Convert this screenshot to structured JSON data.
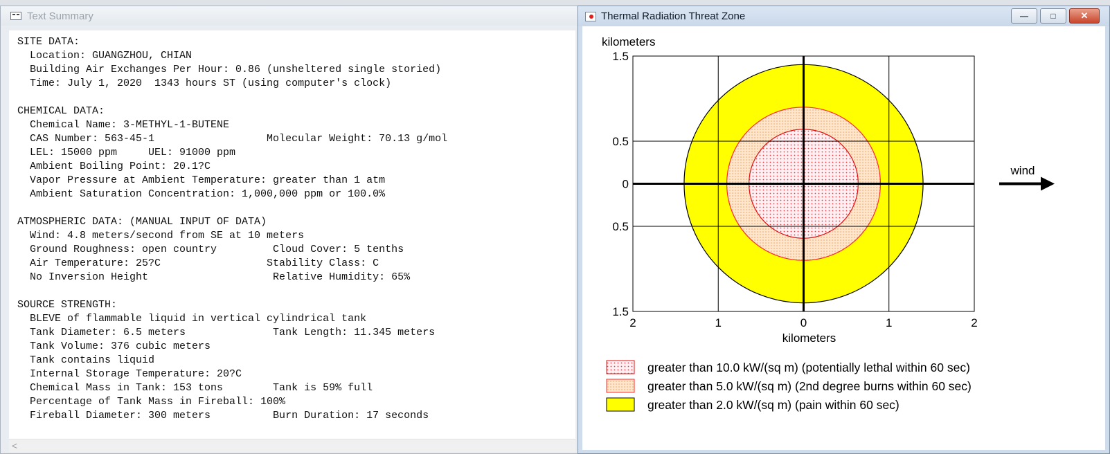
{
  "text_window": {
    "title": "Text Summary",
    "lines": [
      "SITE DATA:",
      "  Location: GUANGZHOU, CHIAN",
      "  Building Air Exchanges Per Hour: 0.86 (unsheltered single storied)",
      "  Time: July 1, 2020  1343 hours ST (using computer's clock)",
      "",
      "CHEMICAL DATA:",
      "  Chemical Name: 3-METHYL-1-BUTENE",
      "  CAS Number: 563-45-1                  Molecular Weight: 70.13 g/mol",
      "  LEL: 15000 ppm     UEL: 91000 ppm",
      "  Ambient Boiling Point: 20.1?C",
      "  Vapor Pressure at Ambient Temperature: greater than 1 atm",
      "  Ambient Saturation Concentration: 1,000,000 ppm or 100.0%",
      "",
      "ATMOSPHERIC DATA: (MANUAL INPUT OF DATA)",
      "  Wind: 4.8 meters/second from SE at 10 meters",
      "  Ground Roughness: open country         Cloud Cover: 5 tenths",
      "  Air Temperature: 25?C                 Stability Class: C",
      "  No Inversion Height                    Relative Humidity: 65%",
      "",
      "SOURCE STRENGTH:",
      "  BLEVE of flammable liquid in vertical cylindrical tank",
      "  Tank Diameter: 6.5 meters              Tank Length: 11.345 meters",
      "  Tank Volume: 376 cubic meters",
      "  Tank contains liquid",
      "  Internal Storage Temperature: 20?C",
      "  Chemical Mass in Tank: 153 tons        Tank is 59% full",
      "  Percentage of Tank Mass in Fireball: 100%",
      "  Fireball Diameter: 300 meters          Burn Duration: 17 seconds"
    ],
    "scroll_left_glyph": "<"
  },
  "plot_window": {
    "title": "Thermal Radiation Threat Zone",
    "minimize_glyph": "—",
    "maximize_glyph": "□",
    "close_glyph": "✕"
  },
  "chart_data": {
    "type": "threat-zone",
    "x": {
      "label": "kilometers",
      "range": [
        -2,
        2
      ],
      "ticks": [
        -2,
        -1,
        0,
        1,
        2
      ],
      "tick_labels": [
        "2",
        "1",
        "0",
        "1",
        "2"
      ]
    },
    "y": {
      "label": "kilometers",
      "range": [
        -1.5,
        1.5
      ],
      "ticks": [
        1.5,
        0.5,
        0,
        -0.5,
        -1.5
      ],
      "tick_labels": [
        "1.5",
        "0.5",
        "0",
        "0.5",
        "1.5"
      ],
      "gridlines": [
        1.5,
        0.5,
        0,
        -0.5,
        -1.5
      ]
    },
    "zones": [
      {
        "threshold": "greater than 2.0 kW/(sq m)",
        "radius_km": 1.4,
        "fill": "#ffff00",
        "stroke": "#000000",
        "pattern": "solid",
        "legend": "greater than 2.0 kW/(sq m) (pain within 60 sec)"
      },
      {
        "threshold": "greater than 5.0 kW/(sq m)",
        "radius_km": 0.9,
        "fill": "#fde3c8",
        "stroke": "#ff2a2a",
        "pattern": "dots-orange",
        "legend": "greater than 5.0 kW/(sq m) (2nd degree burns within 60 sec)"
      },
      {
        "threshold": "greater than 10.0 kW/(sq m)",
        "radius_km": 0.64,
        "fill": "#ffe9ee",
        "stroke": "#e01010",
        "pattern": "dots-red",
        "legend": "greater than 10.0 kW/(sq m) (potentially lethal within 60 sec)"
      }
    ],
    "legend_order": [
      2,
      1,
      0
    ],
    "wind_label": "wind",
    "wind_direction": "right",
    "grid": true
  }
}
